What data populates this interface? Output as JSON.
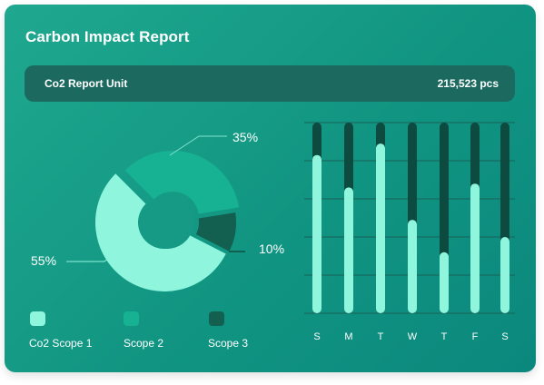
{
  "report": {
    "title": "Carbon Impact Report",
    "unit_label": "Co2 Report Unit",
    "unit_value": "215,523 pcs"
  },
  "donut": {
    "slices": [
      {
        "name": "Co2 Scope 1",
        "percent": 55,
        "label": "55%",
        "color": "#8ff5dd"
      },
      {
        "name": "Scope 2",
        "percent": 35,
        "label": "35%",
        "color": "#17b194"
      },
      {
        "name": "Scope 3",
        "percent": 10,
        "label": "10%",
        "color": "#135f50"
      }
    ]
  },
  "legend": [
    {
      "label": "Co2 Scope 1",
      "color": "#8ff5dd"
    },
    {
      "label": "Scope 2",
      "color": "#17b194"
    },
    {
      "label": "Scope 3",
      "color": "#135f50"
    }
  ],
  "chart_data": {
    "type": "bar",
    "categories": [
      "S",
      "M",
      "T",
      "W",
      "T",
      "F",
      "S"
    ],
    "values": [
      0.83,
      0.66,
      0.89,
      0.49,
      0.32,
      0.68,
      0.4
    ],
    "ylim": [
      0,
      1
    ],
    "track_color": "#0d4a40",
    "bar_color": "#8ff5dd",
    "grid": true
  }
}
